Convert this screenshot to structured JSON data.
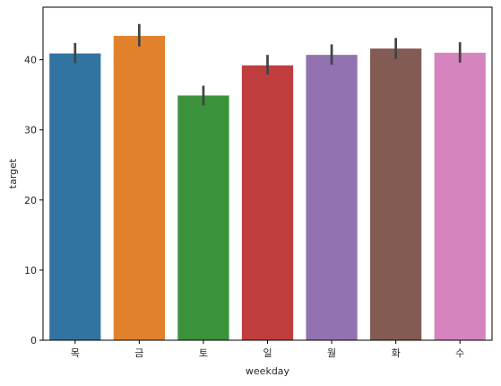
{
  "chart_data": {
    "type": "bar",
    "categories": [
      "목",
      "금",
      "토",
      "일",
      "월",
      "화",
      "수"
    ],
    "values": [
      40.9,
      43.4,
      34.9,
      39.2,
      40.7,
      41.6,
      41.0
    ],
    "error_bars": [
      [
        39.5,
        42.4
      ],
      [
        41.9,
        45.1
      ],
      [
        33.5,
        36.3
      ],
      [
        37.9,
        40.7
      ],
      [
        39.3,
        42.2
      ],
      [
        40.1,
        43.1
      ],
      [
        39.6,
        42.5
      ]
    ],
    "colors": [
      "#3274a1",
      "#e1812c",
      "#3a923a",
      "#c03d3e",
      "#9372b2",
      "#845b53",
      "#d684bd"
    ],
    "error_color": "#424242",
    "xlabel": "weekday",
    "ylabel": "target",
    "ylim": [
      0,
      47.5
    ],
    "yticks": [
      0,
      10,
      20,
      30,
      40
    ],
    "grid": false,
    "legend": "none"
  }
}
